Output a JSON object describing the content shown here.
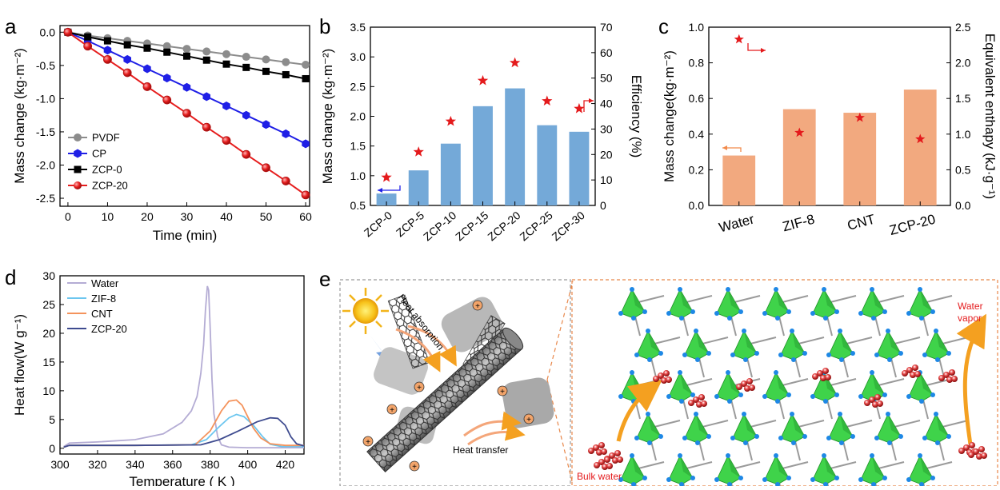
{
  "figure": {
    "panel_letters": [
      "a",
      "b",
      "c",
      "d",
      "e"
    ]
  },
  "colors": {
    "pvdf": "#8c8c8c",
    "cp": "#1f1fe6",
    "zcp0": "#000000",
    "zcp20": "#e61e1e",
    "bar_blue": "#74a9d8",
    "bar_orange": "#f2a97f",
    "star": "#e41a1c",
    "water_line": "#b4acd4",
    "zif8_line": "#6cc6ef",
    "cnt_line": "#f4935c",
    "zcp20_line": "#3e4b8f"
  },
  "chart_data": [
    {
      "panel": "a",
      "type": "line",
      "xlabel": "Time (min)",
      "ylabel": "Mass change (kg·m⁻²)",
      "xlim": [
        -2,
        61
      ],
      "ylim": [
        -2.62,
        0.1
      ],
      "xticks": [
        "0",
        "10",
        "20",
        "30",
        "40",
        "50",
        "60"
      ],
      "yticks": [
        "0.0",
        "-0.5",
        "-1.0",
        "-1.5",
        "-2.0",
        "-2.5"
      ],
      "x": [
        0,
        5,
        10,
        15,
        20,
        25,
        30,
        35,
        40,
        45,
        50,
        55,
        60
      ],
      "series": [
        {
          "name": "PVDF",
          "marker": "circle",
          "values": [
            0,
            -0.05,
            -0.09,
            -0.13,
            -0.17,
            -0.21,
            -0.25,
            -0.29,
            -0.33,
            -0.37,
            -0.41,
            -0.45,
            -0.49
          ]
        },
        {
          "name": "CP",
          "marker": "hexagon",
          "values": [
            0,
            -0.13,
            -0.27,
            -0.41,
            -0.55,
            -0.69,
            -0.83,
            -0.97,
            -1.11,
            -1.25,
            -1.39,
            -1.53,
            -1.68
          ]
        },
        {
          "name": "ZCP-0",
          "marker": "square",
          "values": [
            0,
            -0.07,
            -0.13,
            -0.19,
            -0.24,
            -0.3,
            -0.36,
            -0.42,
            -0.48,
            -0.53,
            -0.59,
            -0.64,
            -0.7
          ]
        },
        {
          "name": "ZCP-20",
          "marker": "sphere",
          "values": [
            0,
            -0.21,
            -0.41,
            -0.61,
            -0.82,
            -1.02,
            -1.22,
            -1.43,
            -1.63,
            -1.84,
            -2.04,
            -2.24,
            -2.45
          ]
        }
      ],
      "legend_position": "bottom-left"
    },
    {
      "panel": "b",
      "type": "bar",
      "categories": [
        "ZCP-0",
        "ZCP-5",
        "ZCP-10",
        "ZCP-15",
        "ZCP-20",
        "ZCP-25",
        "ZCP-30"
      ],
      "ylabel": "Mass change (kg·m⁻²)",
      "y2label": "Efficiency (%)",
      "ylim": [
        0.5,
        3.5
      ],
      "y2lim": [
        0,
        70
      ],
      "yticks": [
        "0.5",
        "1.0",
        "1.5",
        "2.0",
        "2.5",
        "3.0",
        "3.5"
      ],
      "y2ticks": [
        "0",
        "10",
        "20",
        "30",
        "40",
        "50",
        "60",
        "70"
      ],
      "values": [
        0.7,
        1.09,
        1.54,
        2.17,
        2.47,
        1.85,
        1.74
      ],
      "efficiency": [
        11,
        21,
        33,
        49,
        56,
        41,
        38
      ]
    },
    {
      "panel": "c",
      "type": "bar",
      "categories": [
        "Water",
        "ZIF-8",
        "CNT",
        "ZCP-20"
      ],
      "ylabel": "Mass change(kg·m⁻²)",
      "y2label": "Equivalent enthapy (kJ·g⁻¹)",
      "ylim": [
        0,
        1.0
      ],
      "y2lim": [
        0,
        2.5
      ],
      "yticks": [
        "0.0",
        "0.2",
        "0.4",
        "0.6",
        "0.8",
        "1.0"
      ],
      "y2ticks": [
        "0.0",
        "0.5",
        "1.0",
        "1.5",
        "2.0",
        "2.5"
      ],
      "values": [
        0.28,
        0.54,
        0.52,
        0.65
      ],
      "enthalpy": [
        2.33,
        1.02,
        1.23,
        0.93
      ]
    },
    {
      "panel": "d",
      "type": "line",
      "xlabel": "Temperature ( K )",
      "ylabel": "Heat flow(W g⁻¹)",
      "xlim": [
        300,
        430
      ],
      "ylim": [
        -1,
        30
      ],
      "xticks": [
        "300",
        "320",
        "340",
        "360",
        "380",
        "400",
        "420"
      ],
      "yticks": [
        "0",
        "5",
        "10",
        "15",
        "20",
        "25",
        "30"
      ],
      "series": [
        {
          "name": "Water",
          "points": [
            [
              302,
              0.3
            ],
            [
              305,
              0.9
            ],
            [
              320,
              1.1
            ],
            [
              340,
              1.5
            ],
            [
              355,
              2.5
            ],
            [
              365,
              4.5
            ],
            [
              370,
              6.5
            ],
            [
              373,
              9
            ],
            [
              375,
              13
            ],
            [
              376.5,
              18
            ],
            [
              377.5,
              24
            ],
            [
              378.5,
              28.2
            ],
            [
              379.2,
              27.5
            ],
            [
              380,
              21
            ],
            [
              381,
              12
            ],
            [
              382,
              6
            ],
            [
              384,
              2
            ],
            [
              386,
              0.6
            ],
            [
              390,
              0.2
            ],
            [
              400,
              0.1
            ],
            [
              430,
              0.1
            ]
          ]
        },
        {
          "name": "ZIF-8",
          "points": [
            [
              302,
              0.2
            ],
            [
              305,
              0.5
            ],
            [
              340,
              0.5
            ],
            [
              370,
              0.6
            ],
            [
              378,
              1.5
            ],
            [
              384,
              3.5
            ],
            [
              390,
              5.3
            ],
            [
              394,
              5.9
            ],
            [
              398,
              5.5
            ],
            [
              403,
              4
            ],
            [
              408,
              2
            ],
            [
              412,
              0.7
            ],
            [
              418,
              0.3
            ],
            [
              430,
              0.3
            ]
          ]
        },
        {
          "name": "CNT",
          "points": [
            [
              302,
              0.2
            ],
            [
              305,
              0.5
            ],
            [
              340,
              0.5
            ],
            [
              372,
              0.6
            ],
            [
              380,
              3
            ],
            [
              386,
              6.5
            ],
            [
              390,
              8.2
            ],
            [
              394,
              8.4
            ],
            [
              397,
              7.5
            ],
            [
              400,
              5.5
            ],
            [
              403,
              3.5
            ],
            [
              407,
              1.8
            ],
            [
              412,
              0.8
            ],
            [
              420,
              0.5
            ],
            [
              430,
              0.5
            ]
          ]
        },
        {
          "name": "ZCP-20",
          "points": [
            [
              302,
              0.2
            ],
            [
              305,
              0.5
            ],
            [
              340,
              0.5
            ],
            [
              375,
              0.6
            ],
            [
              385,
              1.5
            ],
            [
              395,
              3
            ],
            [
              405,
              4.6
            ],
            [
              412,
              5.3
            ],
            [
              416,
              5.2
            ],
            [
              420,
              4
            ],
            [
              423,
              2
            ],
            [
              426,
              0.8
            ],
            [
              430,
              0.4
            ]
          ]
        }
      ],
      "legend_position": "top-left"
    }
  ],
  "panel_e": {
    "label_heat_absorption": "Heat absorption",
    "label_heat_transfer": "Heat transfer",
    "label_water_vapor_1": "Water",
    "label_water_vapor_2": "vapor",
    "label_bulk_water": "Bulk water"
  }
}
